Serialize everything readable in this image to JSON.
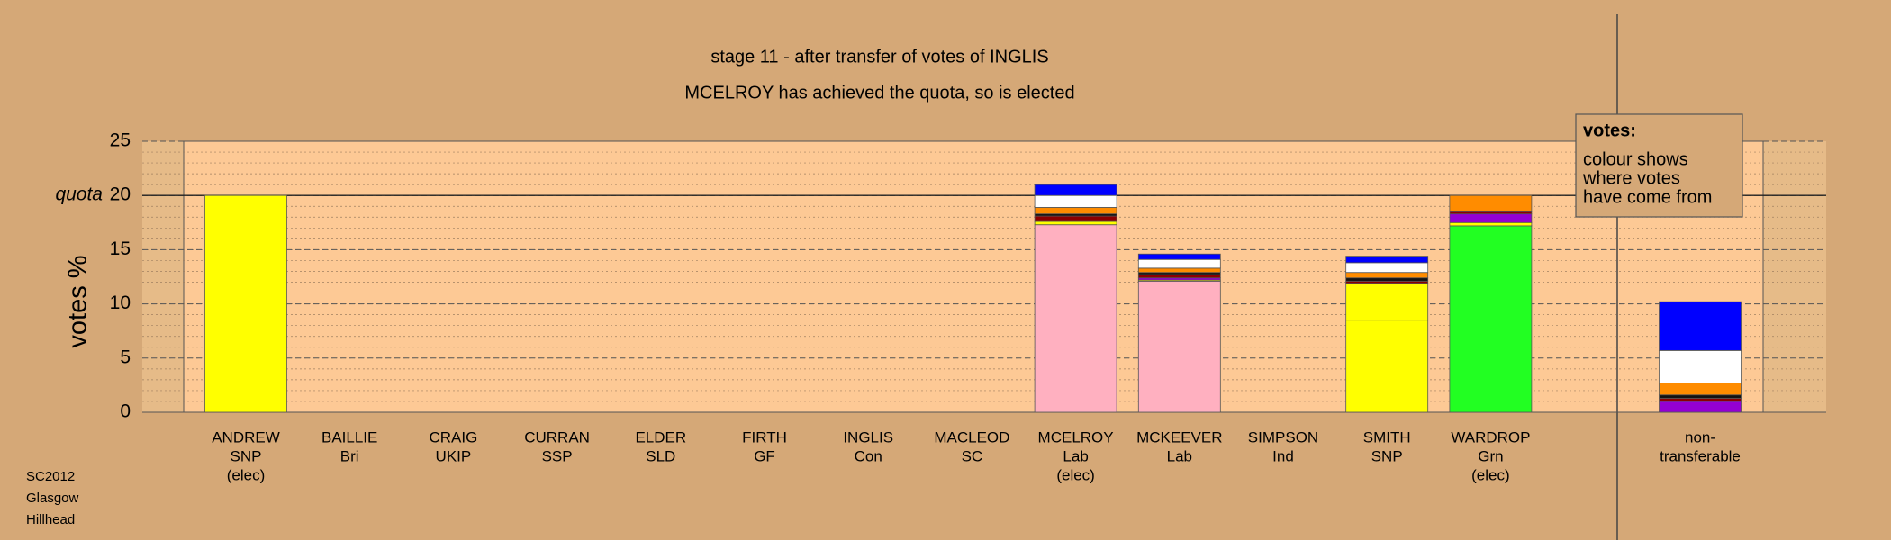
{
  "chart_data": {
    "type": "stacked_bar",
    "title": "stage 11 - after transfer of votes of INGLIS",
    "subtitle": "MCELROY has achieved the quota, so is elected",
    "y_label": "votes %",
    "categories": [
      [
        "ANDREW",
        "SNP",
        "(elec)"
      ],
      [
        "BAILLIE",
        "Bri"
      ],
      [
        "CRAIG",
        "UKIP"
      ],
      [
        "CURRAN",
        "SSP"
      ],
      [
        "ELDER",
        "SLD"
      ],
      [
        "FIRTH",
        "GF"
      ],
      [
        "INGLIS",
        "Con"
      ],
      [
        "MACLEOD",
        "SC"
      ],
      [
        "MCELROY",
        "Lab",
        "(elec)"
      ],
      [
        "MCKEEVER",
        "Lab"
      ],
      [
        "SIMPSON",
        "Ind"
      ],
      [
        "SMITH",
        "SNP"
      ],
      [
        "WARDROP",
        "Grn",
        "(elec)"
      ],
      [
        "non-",
        "transferable"
      ]
    ],
    "series": [
      {
        "colors": [
          "#ffff00",
          null,
          null,
          null,
          null,
          null,
          null,
          null,
          "#ffb0c0",
          "#ffb0c0",
          null,
          "#ffff00",
          "#22ff22",
          null
        ],
        "values": [
          20,
          0,
          0,
          0,
          0,
          0,
          0,
          0,
          17.3,
          12.1,
          0,
          8.5,
          17.2,
          0
        ]
      },
      {
        "color": "#ffff00",
        "values": [
          0,
          0,
          0,
          0,
          0,
          0,
          0,
          0,
          0.3,
          0.1,
          0,
          3.4,
          0.3,
          0
        ]
      },
      {
        "color": "#9400d3",
        "values": [
          0,
          0,
          0,
          0,
          0,
          0,
          0,
          0,
          0,
          0.2,
          0,
          0,
          0.8,
          1.0
        ]
      },
      {
        "color": "#8b0000",
        "values": [
          0,
          0,
          0,
          0,
          0,
          0,
          0,
          0,
          0.5,
          0.3,
          0,
          0.2,
          0.2,
          0.3
        ]
      },
      {
        "color": "#111111",
        "values": [
          0,
          0,
          0,
          0,
          0,
          0,
          0,
          0,
          0.2,
          0.2,
          0,
          0.3,
          0,
          0.3
        ]
      },
      {
        "color": "#ff8c00",
        "values": [
          0,
          0,
          0,
          0,
          0,
          0,
          0,
          0,
          0.6,
          0.4,
          0,
          0.5,
          1.5,
          1.1
        ]
      },
      {
        "color": "#ffffff",
        "values": [
          0,
          0,
          0,
          0,
          0,
          0,
          0,
          0,
          1.1,
          0.8,
          0,
          0.9,
          0,
          3.0
        ]
      },
      {
        "color": "#0000ff",
        "values": [
          0,
          0,
          0,
          0,
          0,
          0,
          0,
          0,
          1.0,
          0.5,
          0,
          0.6,
          0,
          4.5
        ]
      }
    ],
    "ylim": [
      0,
      25
    ],
    "yticks": [
      0,
      5,
      10,
      15,
      20,
      25
    ],
    "minor_ystep": 1,
    "quota": {
      "value": 20,
      "label": "quota"
    },
    "grid": true,
    "note": {
      "title": "votes:",
      "lines": [
        "colour shows",
        "where votes",
        "have come from"
      ]
    },
    "footer": [
      "SC2012",
      "Glasgow",
      "Hillhead"
    ]
  }
}
